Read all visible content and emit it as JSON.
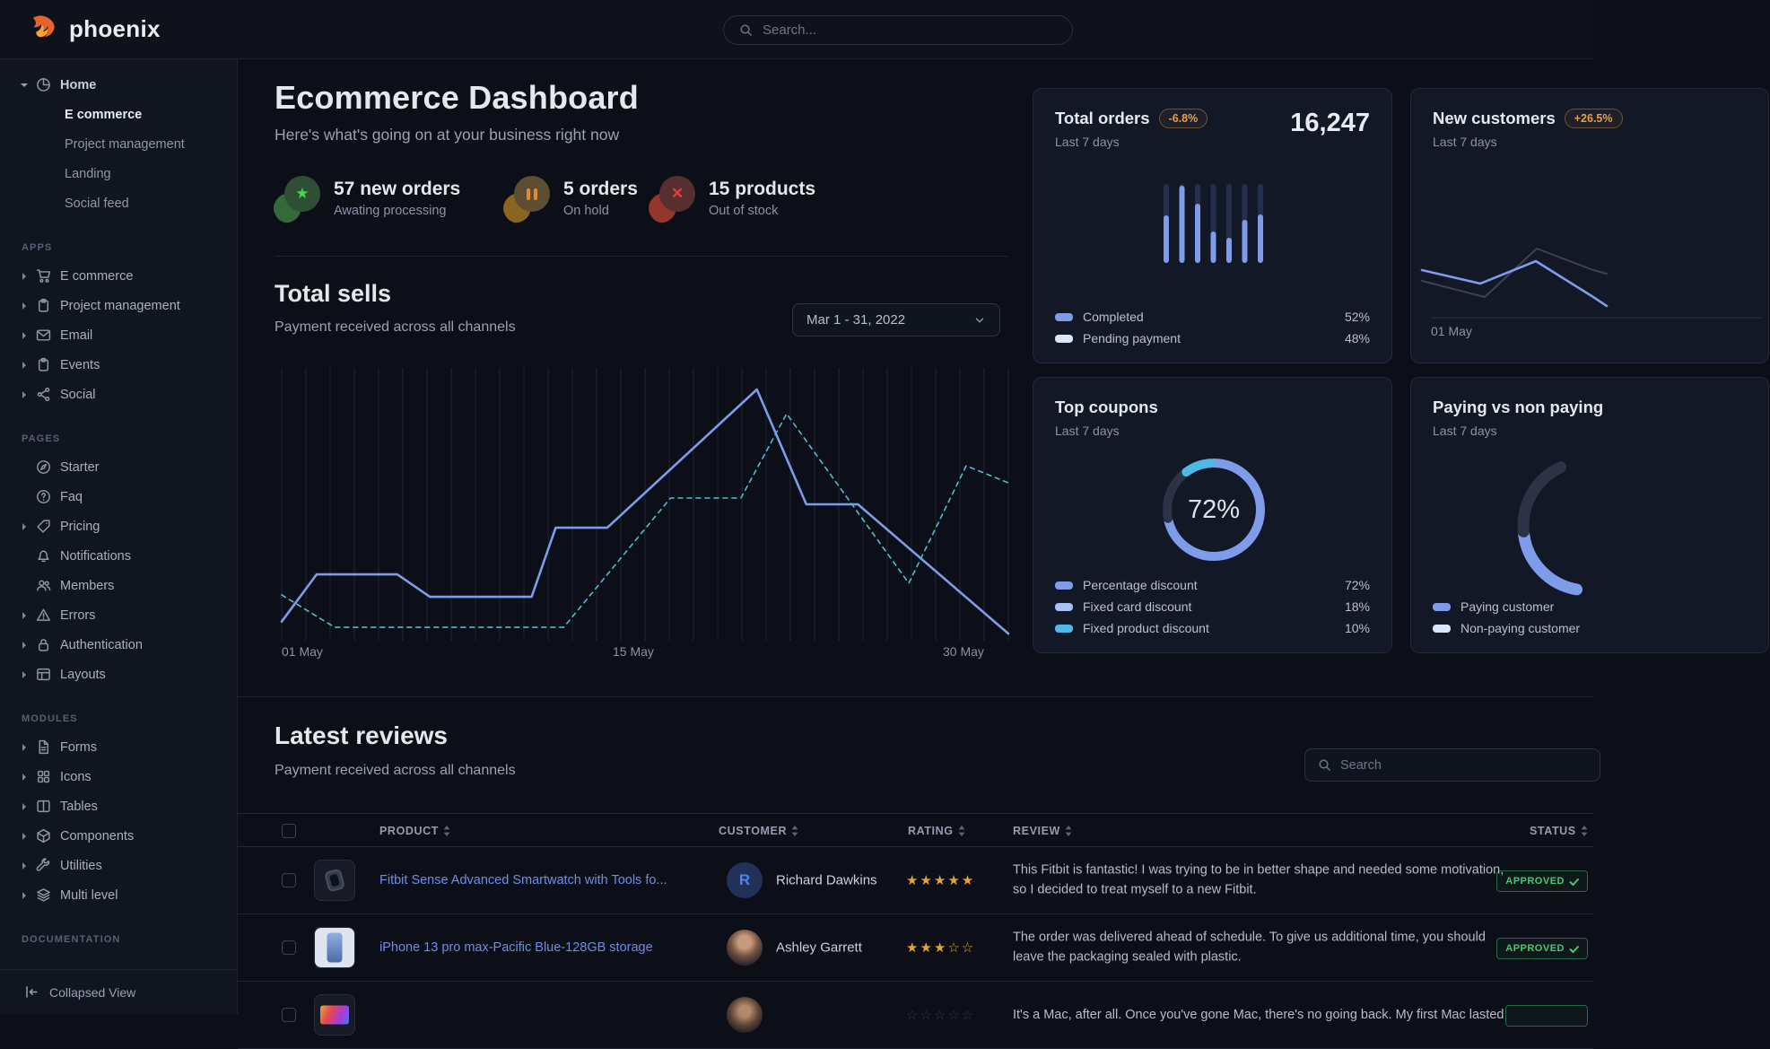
{
  "topbar": {
    "brand": "phoenix",
    "search_placeholder": "Search..."
  },
  "sidebar": {
    "home": {
      "label": "Home",
      "icon": "pie",
      "children": [
        {
          "label": "E commerce",
          "active": true
        },
        {
          "label": "Project management",
          "active": false
        },
        {
          "label": "Landing",
          "active": false
        },
        {
          "label": "Social feed",
          "active": false
        }
      ]
    },
    "sections": [
      {
        "label": "APPS",
        "items": [
          {
            "label": "E commerce",
            "icon": "cart",
            "caret": true
          },
          {
            "label": "Project management",
            "icon": "clipboard",
            "caret": true
          },
          {
            "label": "Email",
            "icon": "mail",
            "caret": true
          },
          {
            "label": "Events",
            "icon": "clipboard",
            "caret": true
          },
          {
            "label": "Social",
            "icon": "share",
            "caret": true
          }
        ]
      },
      {
        "label": "PAGES",
        "items": [
          {
            "label": "Starter",
            "icon": "compass",
            "caret": false
          },
          {
            "label": "Faq",
            "icon": "question",
            "caret": false
          },
          {
            "label": "Pricing",
            "icon": "tag",
            "caret": true
          },
          {
            "label": "Notifications",
            "icon": "bell",
            "caret": false
          },
          {
            "label": "Members",
            "icon": "users",
            "caret": false
          },
          {
            "label": "Errors",
            "icon": "alert",
            "caret": true
          },
          {
            "label": "Authentication",
            "icon": "lock",
            "caret": true
          },
          {
            "label": "Layouts",
            "icon": "layout",
            "caret": true
          }
        ]
      },
      {
        "label": "MODULES",
        "items": [
          {
            "label": "Forms",
            "icon": "file",
            "caret": true
          },
          {
            "label": "Icons",
            "icon": "grid",
            "caret": true
          },
          {
            "label": "Tables",
            "icon": "columns",
            "caret": true
          },
          {
            "label": "Components",
            "icon": "cube",
            "caret": true
          },
          {
            "label": "Utilities",
            "icon": "wrench",
            "caret": true
          },
          {
            "label": "Multi level",
            "icon": "layers",
            "caret": true
          }
        ]
      },
      {
        "label": "DOCUMENTATION",
        "items": []
      }
    ],
    "footer_label": "Collapsed View"
  },
  "hero": {
    "title": "Ecommerce Dashboard",
    "subtitle": "Here's what's going on at your business right now",
    "stats": [
      {
        "value": "57 new orders",
        "caption": "Awating processing",
        "icon": "star",
        "theme": "green"
      },
      {
        "value": "5 orders",
        "caption": "On hold",
        "icon": "pause",
        "theme": "amber"
      },
      {
        "value": "15 products",
        "caption": "Out of stock",
        "icon": "x",
        "theme": "red"
      }
    ]
  },
  "total_sells": {
    "title": "Total sells",
    "subtitle": "Payment received across all channels",
    "date_range": "Mar 1 - 31, 2022",
    "x_labels": [
      "01 May",
      "15 May",
      "30 May"
    ]
  },
  "cards": {
    "orders": {
      "title": "Total orders",
      "badge": "-6.8%",
      "period": "Last 7 days",
      "value": "16,247",
      "legend": [
        {
          "label": "Completed",
          "value": "52%",
          "color": "#7e9cea"
        },
        {
          "label": "Pending payment",
          "value": "48%",
          "color": "#dbe6fa"
        }
      ]
    },
    "customers": {
      "title": "New customers",
      "badge": "+26.5%",
      "period": "Last 7 days",
      "x_label": "01 May"
    },
    "coupons": {
      "title": "Top coupons",
      "period": "Last 7 days",
      "center_value": "72%",
      "legend": [
        {
          "label": "Percentage discount",
          "value": "72%",
          "color": "#7e9cea"
        },
        {
          "label": "Fixed card discount",
          "value": "18%",
          "color": "#a9c0f2"
        },
        {
          "label": "Fixed product discount",
          "value": "10%",
          "color": "#4fb9e6"
        }
      ]
    },
    "paying": {
      "title": "Paying vs non paying",
      "period": "Last 7 days",
      "legend": [
        {
          "label": "Paying customer",
          "value": "",
          "color": "#7e9cea"
        },
        {
          "label": "Non-paying customer",
          "value": "",
          "color": "#dbe6fa"
        }
      ]
    }
  },
  "reviews": {
    "title": "Latest reviews",
    "subtitle": "Payment received across all channels",
    "search_placeholder": "Search",
    "columns": [
      "PRODUCT",
      "CUSTOMER",
      "RATING",
      "REVIEW",
      "STATUS"
    ],
    "rows": [
      {
        "product": "Fitbit Sense Advanced Smartwatch with Tools fo...",
        "thumb": "watch",
        "customer": "Richard Dawkins",
        "avatar": "initial",
        "avatar_initial": "R",
        "rating": 5,
        "rating_max": 5,
        "review": "This Fitbit is fantastic! I was trying to be in better shape and needed some motivation, so I decided to treat myself to a new Fitbit.",
        "status": "APPROVED"
      },
      {
        "product": "iPhone 13 pro max-Pacific Blue-128GB storage",
        "thumb": "phone",
        "customer": "Ashley Garrett",
        "avatar": "photo1",
        "avatar_initial": "",
        "rating": 3,
        "rating_max": 5,
        "review": "The order was delivered ahead of schedule. To give us additional time, you should leave the packaging sealed with plastic.",
        "status": "APPROVED"
      },
      {
        "product": "",
        "thumb": "laptop",
        "customer": "",
        "avatar": "photo2",
        "avatar_initial": "",
        "rating": 0,
        "rating_max": 5,
        "review": "It's a Mac, after all. Once you've gone Mac, there's no going back. My first Mac lasted",
        "status": ""
      }
    ]
  },
  "chart_data": [
    {
      "name": "total_sells",
      "type": "line",
      "x_labels": [
        "01 May",
        "15 May",
        "30 May"
      ],
      "series": [
        {
          "name": "primary",
          "style": "solid",
          "color": "#7e9cea",
          "points": [
            [
              0,
              0.93
            ],
            [
              0.048,
              0.757
            ],
            [
              0.159,
              0.757
            ],
            [
              0.204,
              0.839
            ],
            [
              0.344,
              0.839
            ],
            [
              0.377,
              0.586
            ],
            [
              0.448,
              0.586
            ],
            [
              0.654,
              0.079
            ],
            [
              0.722,
              0.5
            ],
            [
              0.793,
              0.5
            ],
            [
              1,
              0.974
            ]
          ]
        },
        {
          "name": "secondary",
          "style": "dashed",
          "color": "#4dbdd6",
          "points": [
            [
              0,
              0.832
            ],
            [
              0.073,
              0.951
            ],
            [
              0.388,
              0.951
            ],
            [
              0.535,
              0.477
            ],
            [
              0.632,
              0.477
            ],
            [
              0.695,
              0.168
            ],
            [
              0.863,
              0.789
            ],
            [
              0.942,
              0.359
            ],
            [
              1,
              0.421
            ]
          ]
        }
      ]
    },
    {
      "name": "total_orders",
      "type": "bar",
      "completed_pct": 52,
      "pending_pct": 48,
      "bar_completed_fraction": [
        0.6,
        0.98,
        0.75,
        0.4,
        0.32,
        0.54,
        0.61
      ]
    },
    {
      "name": "new_customers",
      "type": "line",
      "series": [
        {
          "name": "current",
          "color": "#7e9cea",
          "points": [
            [
              12,
              202
            ],
            [
              77,
              217
            ],
            [
              139,
              192
            ],
            [
              203,
              232
            ],
            [
              218,
              242
            ]
          ]
        },
        {
          "name": "previous",
          "color": "#3c4356",
          "points": [
            [
              12,
              214
            ],
            [
              82,
              232
            ],
            [
              140,
              178
            ],
            [
              203,
              202
            ],
            [
              218,
              206
            ]
          ]
        }
      ]
    },
    {
      "name": "top_coupons",
      "type": "donut",
      "values": [
        72,
        18,
        10
      ],
      "labels": [
        "Percentage discount",
        "Fixed card discount",
        "Fixed product discount"
      ],
      "colors": [
        "#7e9cea",
        "#2c3347",
        "#4fb9e6"
      ],
      "center": "72%"
    },
    {
      "name": "paying_vs_nonpaying",
      "type": "arc",
      "segments": [
        {
          "from": 190,
          "to": 262,
          "color": "#7e9cea"
        },
        {
          "from": 265,
          "to": 335,
          "color": "#2c3347"
        }
      ]
    }
  ]
}
